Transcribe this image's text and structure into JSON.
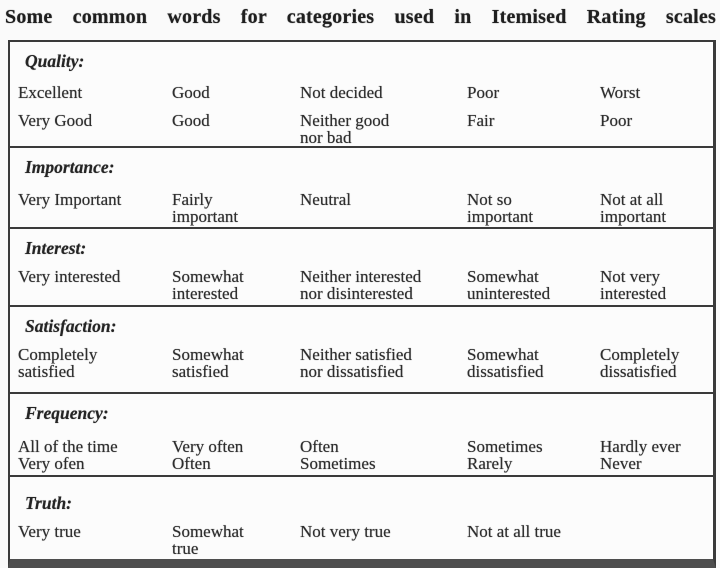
{
  "title": "Some common words for categories used in Itemised Rating scales",
  "table": {
    "sections": [
      {
        "label": "Quality:",
        "rows": [
          [
            "Excellent",
            "Good",
            "Not decided",
            "Poor",
            "Worst"
          ],
          [
            "Very Good",
            "Good",
            "Neither good\nnor bad",
            "Fair",
            "Poor"
          ]
        ]
      },
      {
        "label": "Importance:",
        "rows": [
          [
            "Very Important",
            "Fairly\nimportant",
            "Neutral",
            "Not so\nimportant",
            "Not at all\nimportant"
          ]
        ]
      },
      {
        "label": "Interest:",
        "rows": [
          [
            "Very interested",
            "Somewhat\ninterested",
            "Neither interested\nnor disinterested",
            "Somewhat\nuninterested",
            "Not very\ninterested"
          ]
        ]
      },
      {
        "label": "Satisfaction:",
        "rows": [
          [
            "Completely\nsatisfied",
            "Somewhat\nsatisfied",
            "Neither satisfied\nnor dissatisfied",
            "Somewhat\ndissatisfied",
            "Completely\ndissatisfied"
          ]
        ]
      },
      {
        "label": "Frequency:",
        "rows": [
          [
            "All of the time",
            "Very often",
            "Often",
            "Sometimes",
            "Hardly ever"
          ],
          [
            "Very ofen",
            "Often",
            "Sometimes",
            "Rarely",
            "Never"
          ]
        ]
      },
      {
        "label": "Truth:",
        "rows": [
          [
            "Very true",
            "Somewhat\ntrue",
            "Not very true",
            "Not at all true",
            ""
          ]
        ]
      }
    ]
  },
  "colors": {
    "background": "#fafafa",
    "table_background": "#fcfcfc",
    "border": "#3a3a3a",
    "bottom_bar": "#4e4e4e",
    "text": "#2e2e2e",
    "title_text": "#1f1f1f"
  }
}
